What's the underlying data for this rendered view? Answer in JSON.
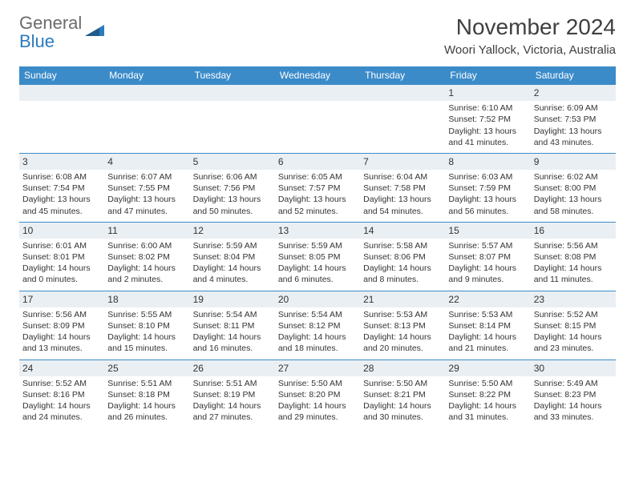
{
  "logo": {
    "line1": "General",
    "line2": "Blue"
  },
  "header": {
    "title": "November 2024",
    "location": "Woori Yallock, Victoria, Australia"
  },
  "colors": {
    "header_bg": "#3b8bc9",
    "header_text": "#ffffff",
    "daynum_bg": "#eaeff3",
    "border": "#3b8bc9",
    "body_text": "#333333",
    "title_text": "#404040",
    "logo_gray": "#6b6b6b",
    "logo_blue": "#2b7bbd"
  },
  "day_headers": [
    "Sunday",
    "Monday",
    "Tuesday",
    "Wednesday",
    "Thursday",
    "Friday",
    "Saturday"
  ],
  "weeks": [
    [
      null,
      null,
      null,
      null,
      null,
      {
        "n": "1",
        "sr": "6:10 AM",
        "ss": "7:52 PM",
        "dl": "13 hours and 41 minutes."
      },
      {
        "n": "2",
        "sr": "6:09 AM",
        "ss": "7:53 PM",
        "dl": "13 hours and 43 minutes."
      }
    ],
    [
      {
        "n": "3",
        "sr": "6:08 AM",
        "ss": "7:54 PM",
        "dl": "13 hours and 45 minutes."
      },
      {
        "n": "4",
        "sr": "6:07 AM",
        "ss": "7:55 PM",
        "dl": "13 hours and 47 minutes."
      },
      {
        "n": "5",
        "sr": "6:06 AM",
        "ss": "7:56 PM",
        "dl": "13 hours and 50 minutes."
      },
      {
        "n": "6",
        "sr": "6:05 AM",
        "ss": "7:57 PM",
        "dl": "13 hours and 52 minutes."
      },
      {
        "n": "7",
        "sr": "6:04 AM",
        "ss": "7:58 PM",
        "dl": "13 hours and 54 minutes."
      },
      {
        "n": "8",
        "sr": "6:03 AM",
        "ss": "7:59 PM",
        "dl": "13 hours and 56 minutes."
      },
      {
        "n": "9",
        "sr": "6:02 AM",
        "ss": "8:00 PM",
        "dl": "13 hours and 58 minutes."
      }
    ],
    [
      {
        "n": "10",
        "sr": "6:01 AM",
        "ss": "8:01 PM",
        "dl": "14 hours and 0 minutes."
      },
      {
        "n": "11",
        "sr": "6:00 AM",
        "ss": "8:02 PM",
        "dl": "14 hours and 2 minutes."
      },
      {
        "n": "12",
        "sr": "5:59 AM",
        "ss": "8:04 PM",
        "dl": "14 hours and 4 minutes."
      },
      {
        "n": "13",
        "sr": "5:59 AM",
        "ss": "8:05 PM",
        "dl": "14 hours and 6 minutes."
      },
      {
        "n": "14",
        "sr": "5:58 AM",
        "ss": "8:06 PM",
        "dl": "14 hours and 8 minutes."
      },
      {
        "n": "15",
        "sr": "5:57 AM",
        "ss": "8:07 PM",
        "dl": "14 hours and 9 minutes."
      },
      {
        "n": "16",
        "sr": "5:56 AM",
        "ss": "8:08 PM",
        "dl": "14 hours and 11 minutes."
      }
    ],
    [
      {
        "n": "17",
        "sr": "5:56 AM",
        "ss": "8:09 PM",
        "dl": "14 hours and 13 minutes."
      },
      {
        "n": "18",
        "sr": "5:55 AM",
        "ss": "8:10 PM",
        "dl": "14 hours and 15 minutes."
      },
      {
        "n": "19",
        "sr": "5:54 AM",
        "ss": "8:11 PM",
        "dl": "14 hours and 16 minutes."
      },
      {
        "n": "20",
        "sr": "5:54 AM",
        "ss": "8:12 PM",
        "dl": "14 hours and 18 minutes."
      },
      {
        "n": "21",
        "sr": "5:53 AM",
        "ss": "8:13 PM",
        "dl": "14 hours and 20 minutes."
      },
      {
        "n": "22",
        "sr": "5:53 AM",
        "ss": "8:14 PM",
        "dl": "14 hours and 21 minutes."
      },
      {
        "n": "23",
        "sr": "5:52 AM",
        "ss": "8:15 PM",
        "dl": "14 hours and 23 minutes."
      }
    ],
    [
      {
        "n": "24",
        "sr": "5:52 AM",
        "ss": "8:16 PM",
        "dl": "14 hours and 24 minutes."
      },
      {
        "n": "25",
        "sr": "5:51 AM",
        "ss": "8:18 PM",
        "dl": "14 hours and 26 minutes."
      },
      {
        "n": "26",
        "sr": "5:51 AM",
        "ss": "8:19 PM",
        "dl": "14 hours and 27 minutes."
      },
      {
        "n": "27",
        "sr": "5:50 AM",
        "ss": "8:20 PM",
        "dl": "14 hours and 29 minutes."
      },
      {
        "n": "28",
        "sr": "5:50 AM",
        "ss": "8:21 PM",
        "dl": "14 hours and 30 minutes."
      },
      {
        "n": "29",
        "sr": "5:50 AM",
        "ss": "8:22 PM",
        "dl": "14 hours and 31 minutes."
      },
      {
        "n": "30",
        "sr": "5:49 AM",
        "ss": "8:23 PM",
        "dl": "14 hours and 33 minutes."
      }
    ]
  ],
  "labels": {
    "sunrise": "Sunrise:",
    "sunset": "Sunset:",
    "daylight": "Daylight:"
  }
}
